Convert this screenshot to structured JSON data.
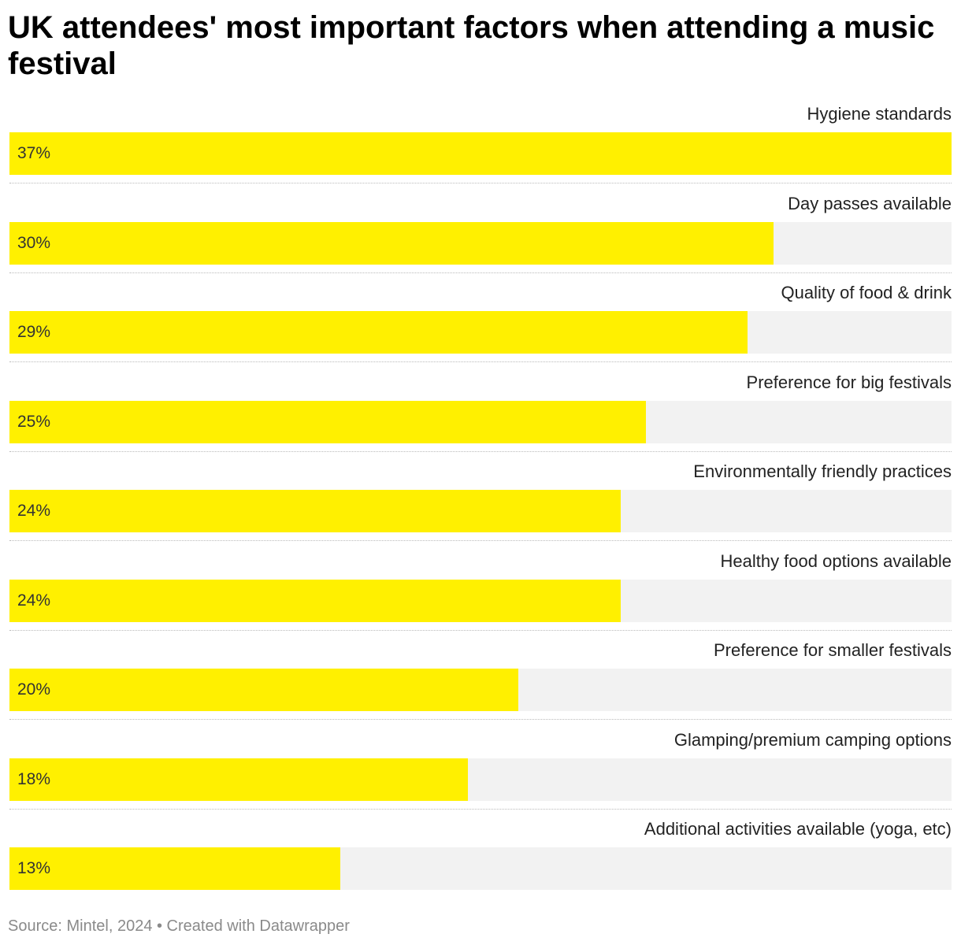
{
  "title": "UK attendees' most important factors when attending a music festival",
  "source": "Source: Mintel, 2024 • Created with Datawrapper",
  "colors": {
    "bar": "#fff000",
    "track": "#f2f2f2"
  },
  "chart_data": {
    "type": "bar",
    "orientation": "horizontal",
    "title": "UK attendees' most important factors when attending a music festival",
    "categories": [
      "Hygiene standards",
      "Day passes available",
      "Quality of food & drink",
      "Preference for big festivals",
      "Environmentally friendly practices",
      "Healthy food options available",
      "Preference for smaller festivals",
      "Glamping/premium camping options",
      "Additional activities available (yoga, etc)"
    ],
    "values": [
      37,
      30,
      29,
      25,
      24,
      24,
      20,
      18,
      13
    ],
    "value_labels": [
      "37%",
      "30%",
      "29%",
      "25%",
      "24%",
      "24%",
      "20%",
      "18%",
      "13%"
    ],
    "unit": "%",
    "xlim": [
      0,
      37
    ]
  }
}
